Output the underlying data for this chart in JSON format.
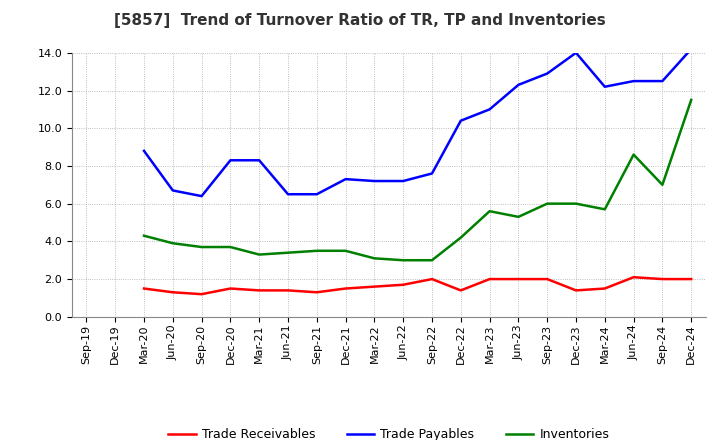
{
  "title": "[5857]  Trend of Turnover Ratio of TR, TP and Inventories",
  "x_labels": [
    "Sep-19",
    "Dec-19",
    "Mar-20",
    "Jun-20",
    "Sep-20",
    "Dec-20",
    "Mar-21",
    "Jun-21",
    "Sep-21",
    "Dec-21",
    "Mar-22",
    "Jun-22",
    "Sep-22",
    "Dec-22",
    "Mar-23",
    "Jun-23",
    "Sep-23",
    "Dec-23",
    "Mar-24",
    "Jun-24",
    "Sep-24",
    "Dec-24"
  ],
  "trade_receivables": [
    null,
    null,
    1.5,
    1.3,
    1.2,
    1.5,
    1.4,
    1.4,
    1.3,
    1.5,
    1.6,
    1.7,
    2.0,
    1.4,
    2.0,
    2.0,
    2.0,
    1.4,
    1.5,
    2.1,
    2.0,
    2.0
  ],
  "trade_payables": [
    null,
    null,
    8.8,
    6.7,
    6.4,
    8.3,
    8.3,
    6.5,
    6.5,
    7.3,
    7.2,
    7.2,
    7.6,
    10.4,
    11.0,
    12.3,
    12.9,
    14.0,
    12.2,
    12.5,
    12.5,
    14.2
  ],
  "inventories": [
    null,
    null,
    4.3,
    3.9,
    3.7,
    3.7,
    3.3,
    3.4,
    3.5,
    3.5,
    3.1,
    3.0,
    3.0,
    4.2,
    5.6,
    5.3,
    6.0,
    6.0,
    5.7,
    8.6,
    7.0,
    11.5
  ],
  "ylim": [
    0.0,
    14.0
  ],
  "yticks": [
    0.0,
    2.0,
    4.0,
    6.0,
    8.0,
    10.0,
    12.0,
    14.0
  ],
  "color_tr": "#ff0000",
  "color_tp": "#0000ff",
  "color_inv": "#008000",
  "legend_labels": [
    "Trade Receivables",
    "Trade Payables",
    "Inventories"
  ],
  "bg_color": "#ffffff",
  "grid_color": "#aaaaaa",
  "linewidth": 1.8,
  "title_fontsize": 11,
  "tick_fontsize": 8,
  "legend_fontsize": 9
}
